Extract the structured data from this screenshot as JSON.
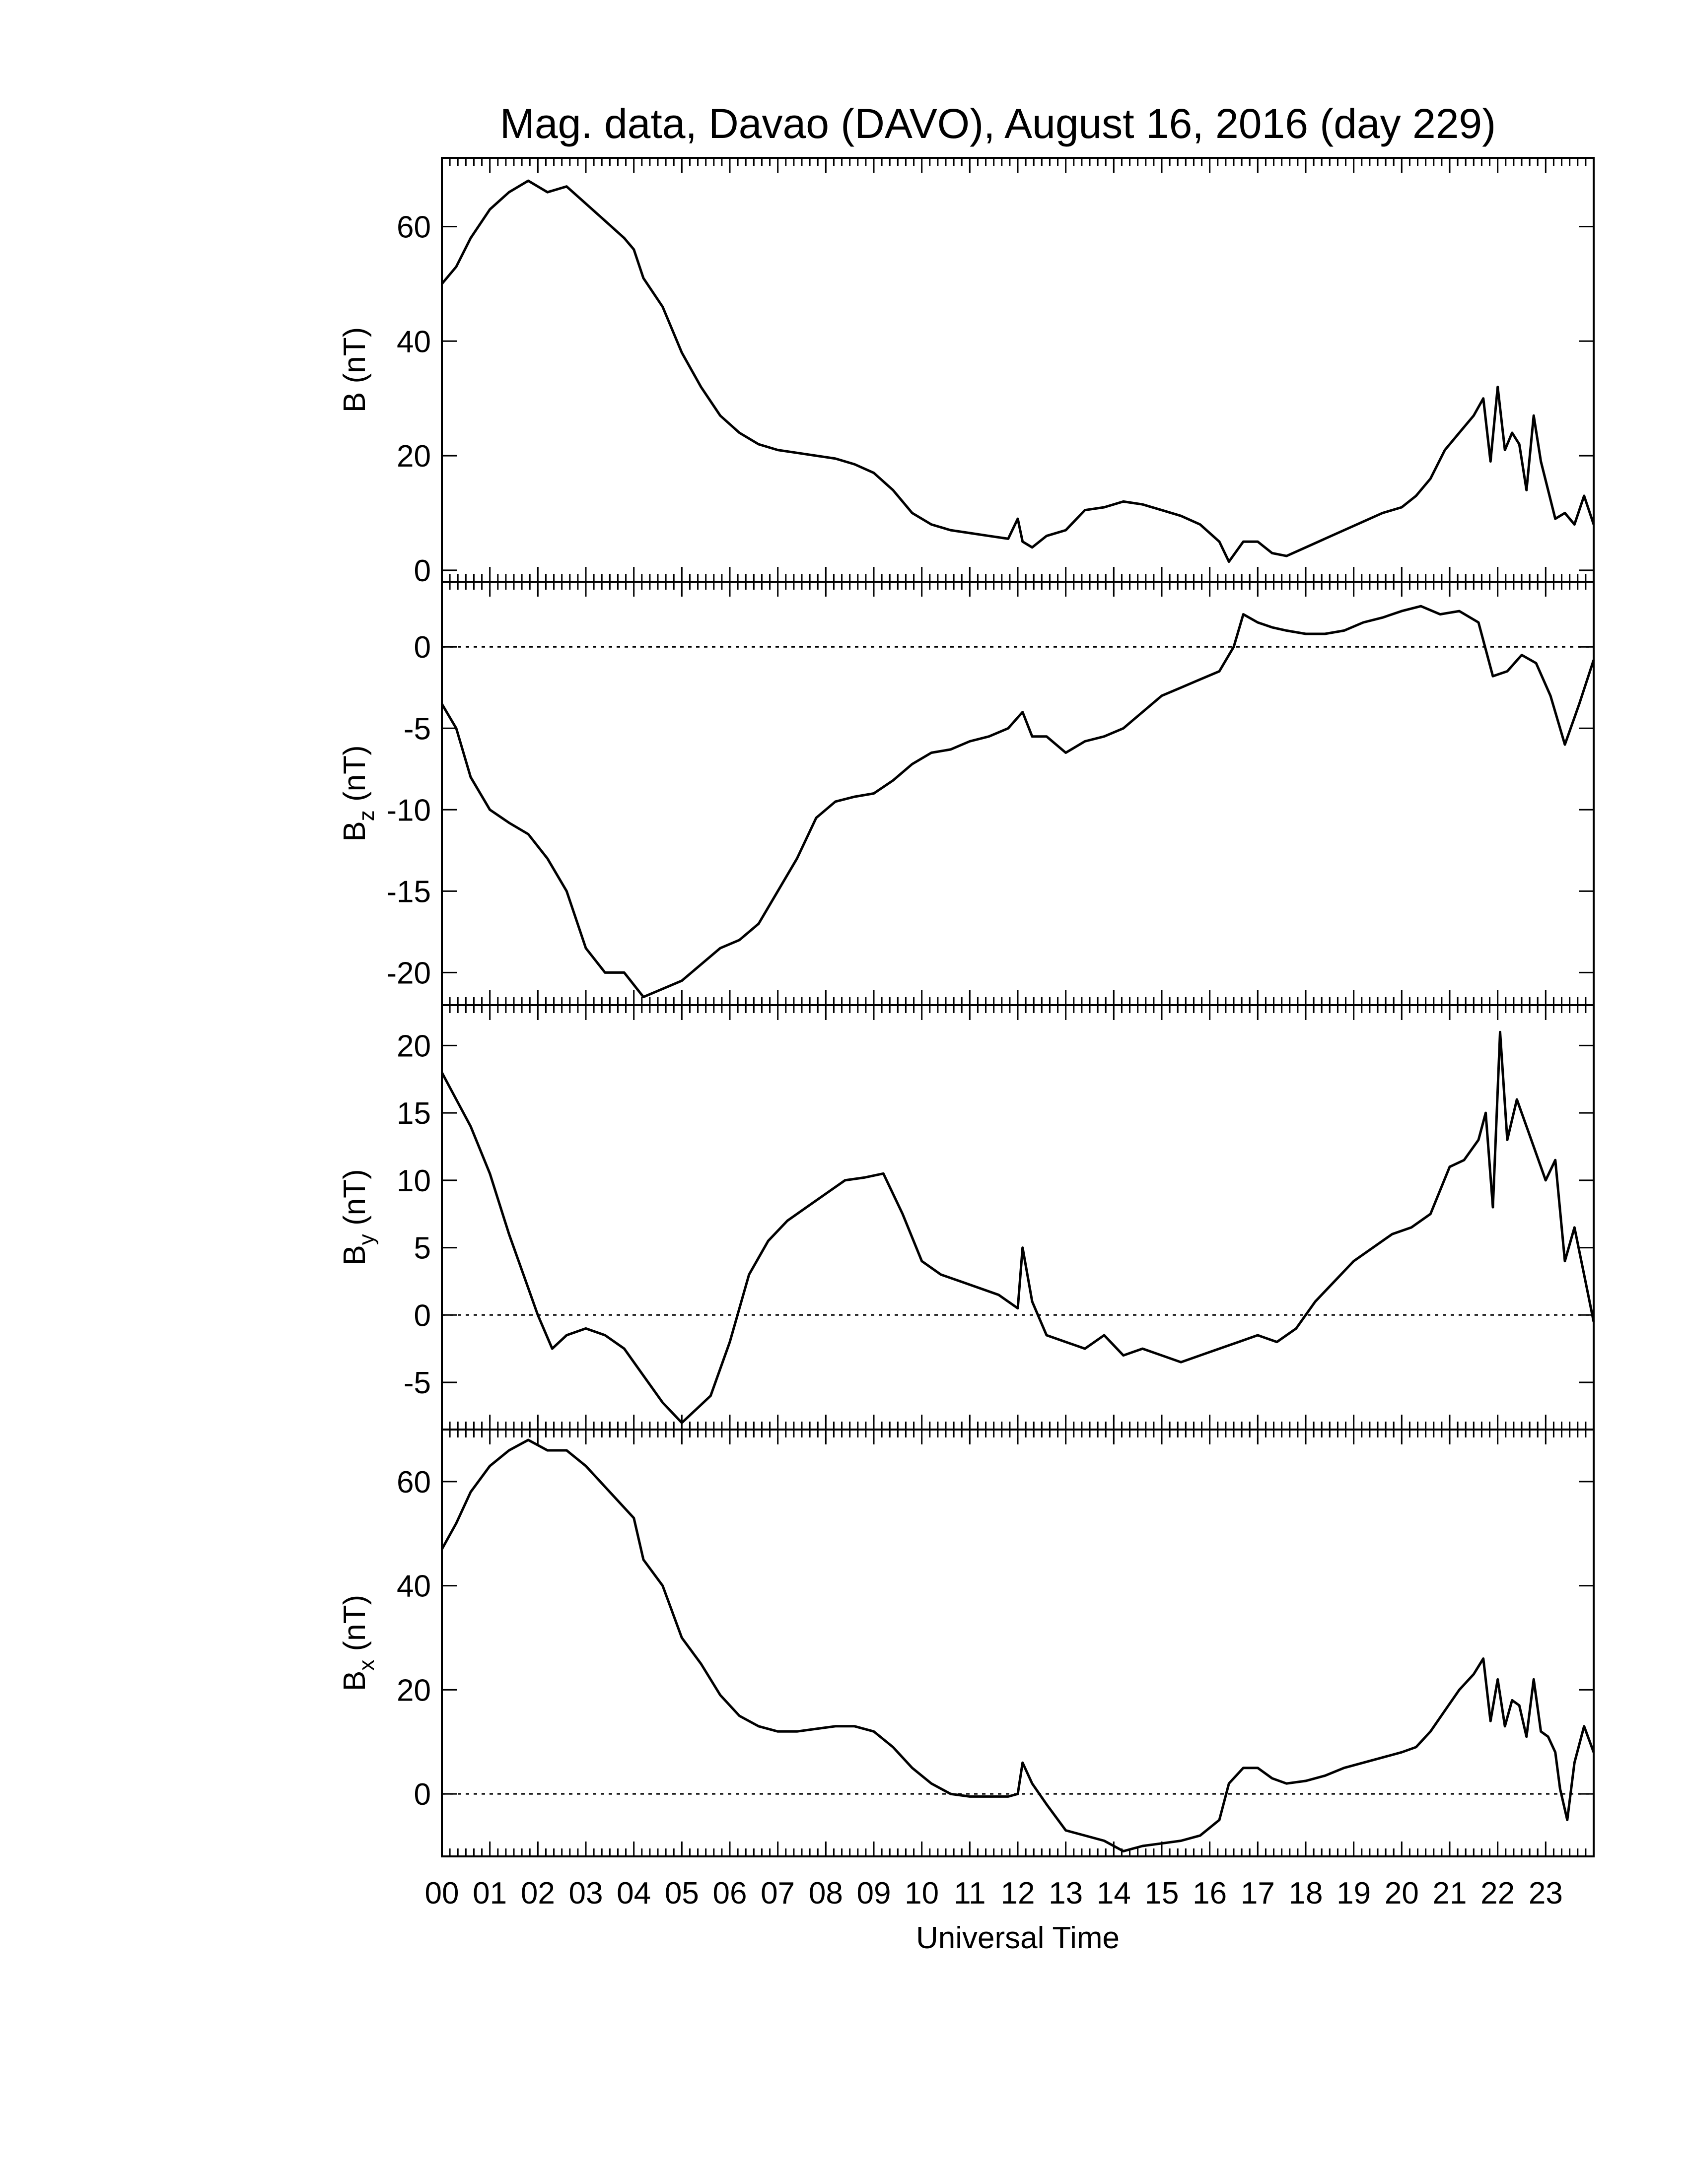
{
  "chart_data": {
    "type": "line",
    "title": "Mag. data, Davao (DAVO), August 16, 2016 (day 229)",
    "xlabel": "Universal Time",
    "x_ticks": [
      "00",
      "01",
      "02",
      "03",
      "04",
      "05",
      "06",
      "07",
      "08",
      "09",
      "10",
      "11",
      "12",
      "13",
      "14",
      "15",
      "16",
      "17",
      "18",
      "19",
      "20",
      "21",
      "22",
      "23"
    ],
    "xlim": [
      0,
      24
    ],
    "panels": [
      {
        "ylabel_main": "B",
        "ylabel_sub": "",
        "ylabel_unit": "(nT)",
        "ylim": [
          -2,
          72
        ],
        "yticks": [
          0,
          20,
          40,
          60
        ],
        "zero_line": false,
        "x": [
          0,
          0.3,
          0.6,
          1.0,
          1.4,
          1.8,
          2.2,
          2.6,
          3.0,
          3.4,
          3.8,
          4.0,
          4.2,
          4.6,
          5.0,
          5.4,
          5.8,
          6.2,
          6.6,
          7.0,
          7.4,
          7.8,
          8.2,
          8.6,
          9.0,
          9.4,
          9.8,
          10.2,
          10.6,
          11.0,
          11.4,
          11.8,
          12.0,
          12.1,
          12.3,
          12.6,
          13.0,
          13.4,
          13.8,
          14.2,
          14.6,
          15.0,
          15.4,
          15.8,
          16.2,
          16.4,
          16.7,
          17.0,
          17.3,
          17.6,
          18.0,
          18.4,
          18.8,
          19.2,
          19.6,
          20.0,
          20.3,
          20.6,
          20.9,
          21.2,
          21.5,
          21.7,
          21.85,
          22.0,
          22.15,
          22.3,
          22.45,
          22.6,
          22.75,
          22.9,
          23.05,
          23.2,
          23.4,
          23.6,
          23.8,
          24.0
        ],
        "values": [
          50,
          53,
          58,
          63,
          66,
          68,
          66,
          67,
          64,
          61,
          58,
          56,
          51,
          46,
          38,
          32,
          27,
          24,
          22,
          21,
          20.5,
          20,
          19.5,
          18.5,
          17,
          14,
          10,
          8,
          7,
          6.5,
          6,
          5.5,
          9,
          5,
          4,
          6,
          7,
          10.5,
          11,
          12,
          11.5,
          10.5,
          9.5,
          8,
          5,
          1.5,
          5,
          5,
          3,
          2.5,
          4,
          5.5,
          7,
          8.5,
          10,
          11,
          13,
          16,
          21,
          24,
          27,
          30,
          19,
          32,
          21,
          24,
          22,
          14,
          27,
          19,
          14,
          9,
          10,
          8,
          13,
          8
        ]
      },
      {
        "ylabel_main": "B",
        "ylabel_sub": "z",
        "ylabel_unit": "(nT)",
        "ylim": [
          -22,
          4
        ],
        "yticks": [
          0,
          -5,
          -10,
          -15,
          -20
        ],
        "zero_line": true,
        "x": [
          0,
          0.3,
          0.6,
          1.0,
          1.4,
          1.8,
          2.2,
          2.6,
          3.0,
          3.4,
          3.8,
          4.2,
          4.6,
          5.0,
          5.4,
          5.8,
          6.2,
          6.6,
          7.0,
          7.4,
          7.8,
          8.2,
          8.6,
          9.0,
          9.4,
          9.8,
          10.2,
          10.6,
          11.0,
          11.4,
          11.8,
          12.1,
          12.3,
          12.6,
          13.0,
          13.4,
          13.8,
          14.2,
          14.6,
          15.0,
          15.4,
          15.8,
          16.2,
          16.5,
          16.7,
          17.0,
          17.3,
          17.6,
          18.0,
          18.4,
          18.8,
          19.2,
          19.6,
          20.0,
          20.4,
          20.8,
          21.2,
          21.6,
          21.9,
          22.2,
          22.5,
          22.8,
          23.1,
          23.4,
          23.7,
          24.0
        ],
        "values": [
          -3.5,
          -5,
          -8,
          -10,
          -10.8,
          -11.5,
          -13,
          -15,
          -18.5,
          -20,
          -20,
          -21.5,
          -21,
          -20.5,
          -19.5,
          -18.5,
          -18,
          -17,
          -15,
          -13,
          -10.5,
          -9.5,
          -9.2,
          -9,
          -8.2,
          -7.2,
          -6.5,
          -6.3,
          -5.8,
          -5.5,
          -5,
          -4,
          -5.5,
          -5.5,
          -6.5,
          -5.8,
          -5.5,
          -5,
          -4,
          -3,
          -2.5,
          -2,
          -1.5,
          0,
          2,
          1.5,
          1.2,
          1.0,
          0.8,
          0.8,
          1.0,
          1.5,
          1.8,
          2.2,
          2.5,
          2.0,
          2.2,
          1.5,
          -1.8,
          -1.5,
          -0.5,
          -1.0,
          -3,
          -6,
          -3.5,
          -0.8
        ]
      },
      {
        "ylabel_main": "B",
        "ylabel_sub": "y",
        "ylabel_unit": "(nT)",
        "ylim": [
          -8.5,
          23
        ],
        "yticks": [
          -5,
          0,
          5,
          10,
          15,
          20
        ],
        "zero_line": true,
        "x": [
          0,
          0.3,
          0.6,
          1.0,
          1.4,
          1.8,
          2.0,
          2.3,
          2.6,
          3.0,
          3.4,
          3.8,
          4.2,
          4.6,
          5.0,
          5.3,
          5.6,
          6.0,
          6.4,
          6.8,
          7.2,
          7.6,
          8.0,
          8.4,
          8.8,
          9.2,
          9.6,
          10.0,
          10.4,
          10.8,
          11.2,
          11.6,
          12.0,
          12.1,
          12.3,
          12.6,
          13.0,
          13.4,
          13.8,
          14.2,
          14.6,
          15.0,
          15.4,
          15.8,
          16.2,
          16.6,
          17.0,
          17.4,
          17.8,
          18.2,
          18.6,
          19.0,
          19.4,
          19.8,
          20.2,
          20.6,
          21.0,
          21.3,
          21.6,
          21.75,
          21.9,
          22.05,
          22.2,
          22.4,
          22.6,
          22.8,
          23.0,
          23.2,
          23.4,
          23.6,
          23.8,
          24.0
        ],
        "values": [
          18,
          16,
          14,
          10.5,
          6,
          2,
          0,
          -2.5,
          -1.5,
          -1,
          -1.5,
          -2.5,
          -4.5,
          -6.5,
          -8,
          -7,
          -6,
          -2,
          3,
          5.5,
          7,
          8,
          9,
          10,
          10.2,
          10.5,
          7.5,
          4,
          3,
          2.5,
          2,
          1.5,
          0.5,
          5,
          1,
          -1.5,
          -2,
          -2.5,
          -1.5,
          -3,
          -2.5,
          -3,
          -3.5,
          -3,
          -2.5,
          -2,
          -1.5,
          -2,
          -1,
          1,
          2.5,
          4,
          5,
          6,
          6.5,
          7.5,
          11,
          11.5,
          13,
          15,
          8,
          21,
          13,
          16,
          14,
          12,
          10,
          11.5,
          4,
          6.5,
          3,
          -0.5
        ]
      },
      {
        "ylabel_main": "B",
        "ylabel_sub": "x",
        "ylabel_unit": "(nT)",
        "ylim": [
          -12,
          70
        ],
        "yticks": [
          0,
          20,
          40,
          60
        ],
        "zero_line": true,
        "x": [
          0,
          0.3,
          0.6,
          1.0,
          1.4,
          1.8,
          2.2,
          2.6,
          3.0,
          3.4,
          3.8,
          4.0,
          4.2,
          4.6,
          5.0,
          5.4,
          5.8,
          6.2,
          6.6,
          7.0,
          7.4,
          7.8,
          8.2,
          8.6,
          9.0,
          9.4,
          9.8,
          10.2,
          10.6,
          11.0,
          11.4,
          11.8,
          12.0,
          12.1,
          12.3,
          12.6,
          13.0,
          13.4,
          13.8,
          14.2,
          14.6,
          15.0,
          15.4,
          15.8,
          16.2,
          16.4,
          16.7,
          17.0,
          17.3,
          17.6,
          18.0,
          18.4,
          18.8,
          19.2,
          19.6,
          20.0,
          20.3,
          20.6,
          20.9,
          21.2,
          21.5,
          21.7,
          21.85,
          22.0,
          22.15,
          22.3,
          22.45,
          22.6,
          22.75,
          22.9,
          23.05,
          23.2,
          23.3,
          23.45,
          23.6,
          23.8,
          24.0
        ],
        "values": [
          47,
          52,
          58,
          63,
          66,
          68,
          66,
          66,
          63,
          59,
          55,
          53,
          45,
          40,
          30,
          25,
          19,
          15,
          13,
          12,
          12,
          12.5,
          13,
          13,
          12,
          9,
          5,
          2,
          0,
          -0.5,
          -0.5,
          -0.5,
          0,
          6,
          2,
          -2,
          -7,
          -8,
          -9,
          -11,
          -10,
          -9.5,
          -9,
          -8,
          -5,
          2,
          5,
          5,
          3,
          2,
          2.5,
          3.5,
          5,
          6,
          7,
          8,
          9,
          12,
          16,
          20,
          23,
          26,
          14,
          22,
          13,
          18,
          17,
          11,
          22,
          12,
          11,
          8,
          1,
          -5,
          6,
          13,
          8
        ]
      }
    ]
  }
}
